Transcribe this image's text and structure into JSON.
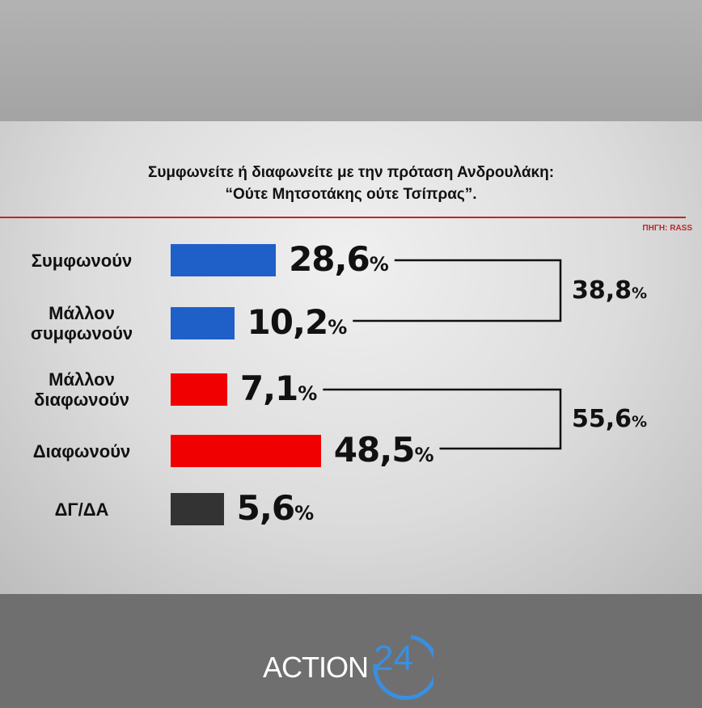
{
  "chart_data": {
    "type": "bar",
    "orientation": "horizontal",
    "title": "Συμφωνείτε ή διαφωνείτε με την πρόταση Ανδρουλάκη:",
    "subtitle": "“Ούτε Μητσοτάκης ούτε Τσίπρας”.",
    "source": "ΠΗΓΗ: RASS",
    "categories": [
      "Συμφωνούν",
      "Μάλλον συμφωνούν",
      "Μάλλον διαφωνούν",
      "Διαφωνούν",
      "ΔΓ/ΔΑ"
    ],
    "values": [
      28.6,
      10.2,
      7.1,
      48.5,
      5.6
    ],
    "value_labels": [
      "28,6",
      "10,2",
      "7,1",
      "48,5",
      "5,6"
    ],
    "unit": "%",
    "colors": [
      "#1f5fc8",
      "#1f5fc8",
      "#f00000",
      "#f00000",
      "#333333"
    ],
    "groups": [
      {
        "members": [
          0,
          1
        ],
        "total": 38.8,
        "label": "38,8"
      },
      {
        "members": [
          2,
          3
        ],
        "total": 55.6,
        "label": "55,6"
      }
    ],
    "grid": false
  },
  "brand": {
    "text": "ACTION",
    "number": "24",
    "color": "#3a8fe0"
  }
}
